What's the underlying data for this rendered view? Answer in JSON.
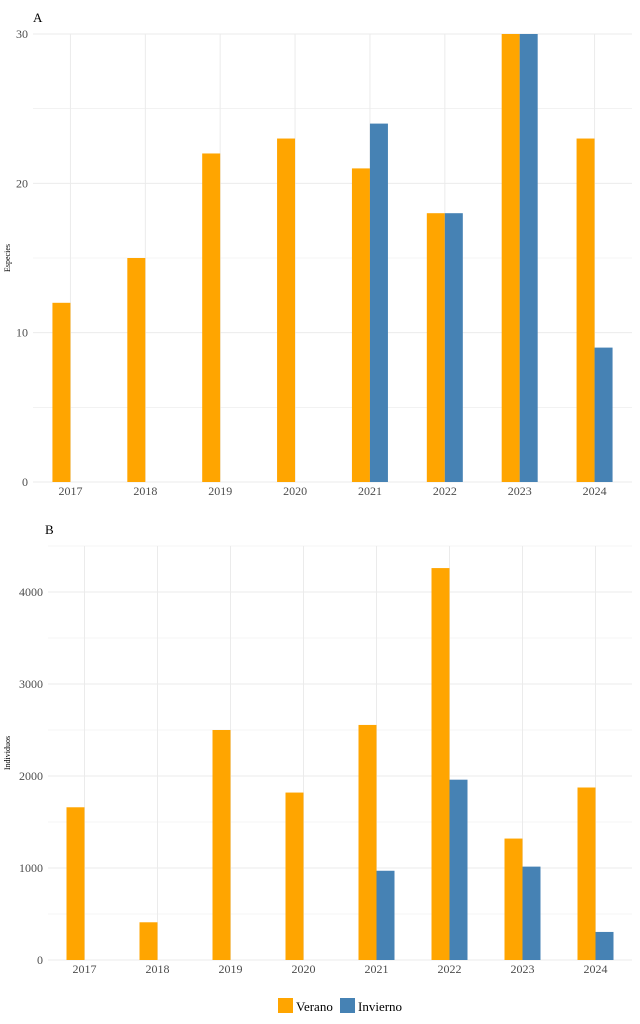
{
  "colors": {
    "verano": "#FFA500",
    "invierno": "#4682B4",
    "grid": "#EBEBEB"
  },
  "legend": {
    "placement": "bottom",
    "items": [
      "Verano",
      "Invierno"
    ]
  },
  "chart_data": [
    {
      "type": "bar",
      "panel_label": "A",
      "ylabel": "Especies",
      "xlabel": "",
      "categories": [
        "2017",
        "2018",
        "2019",
        "2020",
        "2021",
        "2022",
        "2023",
        "2024"
      ],
      "ylim": [
        0,
        30
      ],
      "yticks": [
        0,
        10,
        20,
        30
      ],
      "grid": true,
      "series": [
        {
          "name": "Verano",
          "values": [
            12,
            15,
            22,
            23,
            21,
            18,
            30,
            23
          ]
        },
        {
          "name": "Invierno",
          "values": [
            null,
            null,
            null,
            null,
            24,
            18,
            30,
            9
          ]
        }
      ]
    },
    {
      "type": "bar",
      "panel_label": "B",
      "ylabel": "Individuos",
      "xlabel": "",
      "categories": [
        "2017",
        "2018",
        "2019",
        "2020",
        "2021",
        "2022",
        "2023",
        "2024"
      ],
      "ylim": [
        0,
        4500
      ],
      "yticks": [
        0,
        1000,
        2000,
        3000,
        4000
      ],
      "grid": true,
      "series": [
        {
          "name": "Verano",
          "values": [
            1660,
            410,
            2500,
            1820,
            2555,
            4260,
            1320,
            1875
          ]
        },
        {
          "name": "Invierno",
          "values": [
            null,
            null,
            null,
            null,
            970,
            1960,
            1015,
            305
          ]
        }
      ]
    }
  ]
}
